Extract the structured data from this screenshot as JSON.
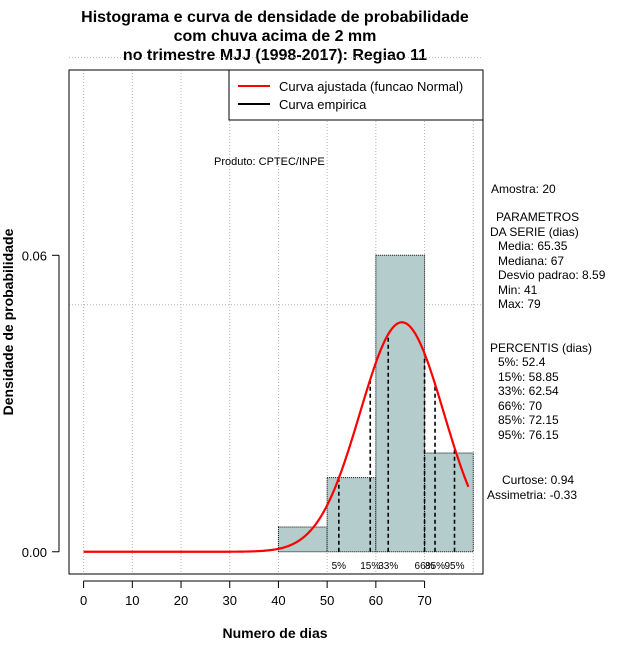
{
  "chart_data": {
    "type": "histogram",
    "title": [
      "Histograma e curva de densidade de probabilidade",
      "com chuva acima de 2 mm",
      "no trimestre MJJ (1998-2017): Regiao 11"
    ],
    "xlabel": "Numero de dias",
    "ylabel": "Densidade de probabilidade",
    "xlim": [
      -3,
      82
    ],
    "ylim": [
      -0.0045,
      0.0975
    ],
    "x_ticks": [
      0,
      10,
      20,
      30,
      40,
      50,
      60,
      70
    ],
    "y_ticks": [
      0.0,
      0.06
    ],
    "y_tick_labels": [
      "0.00",
      "0.06"
    ],
    "v_grid": [
      0,
      10,
      20,
      30,
      40,
      50,
      60,
      70,
      80
    ],
    "h_grid": [
      0.05,
      0.1
    ],
    "bins": [
      {
        "start": 40,
        "end": 50,
        "density": 0.005
      },
      {
        "start": 50,
        "end": 60,
        "density": 0.015
      },
      {
        "start": 60,
        "end": 70,
        "density": 0.06
      },
      {
        "start": 70,
        "end": 80,
        "density": 0.02
      }
    ],
    "bar_color": "#b4cccc",
    "normal_fit": {
      "mean": 65.35,
      "sd": 8.59,
      "x_from": 0,
      "x_to": 79,
      "color": "#ff0000"
    },
    "percentile_lines": [
      {
        "x": 52.4,
        "label": "5%"
      },
      {
        "x": 58.85,
        "label": "15%"
      },
      {
        "x": 62.54,
        "label": "33%"
      },
      {
        "x": 70,
        "label": "66%"
      },
      {
        "x": 72.15,
        "label": "85%"
      },
      {
        "x": 76.15,
        "label": "95%"
      }
    ],
    "legend": [
      {
        "label": "Curva ajustada (funcao Normal)",
        "color": "#ff0000"
      },
      {
        "label": "Curva empirica",
        "color": "#000000"
      }
    ],
    "producer": "Produto: CPTEC/INPE",
    "stats_lines": [
      "Amostra: 20",
      "PARAMETROS",
      "DA SERIE (dias)",
      "Media: 65.35",
      "Mediana: 67",
      "Desvio padrao: 8.59",
      "Min: 41",
      "Max: 79",
      "PERCENTIS (dias)",
      "5%: 52.4",
      "15%: 58.85",
      "33%: 62.54",
      "66%: 70",
      "85%: 72.15",
      "95%: 76.15",
      "Curtose: 0.94",
      "Assimetria: -0.33"
    ]
  }
}
